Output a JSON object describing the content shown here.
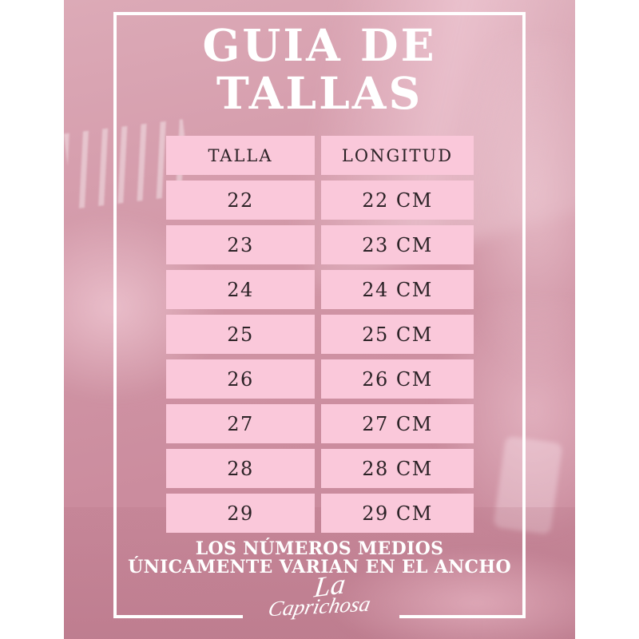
{
  "title": {
    "line1": "GUIA DE",
    "line2": "TALLAS"
  },
  "table": {
    "headers": [
      "TALLA",
      "LONGITUD"
    ],
    "rows": [
      [
        "22",
        "22 CM"
      ],
      [
        "23",
        "23 CM"
      ],
      [
        "24",
        "24 CM"
      ],
      [
        "25",
        "25 CM"
      ],
      [
        "26",
        "26 CM"
      ],
      [
        "27",
        "27 CM"
      ],
      [
        "28",
        "28 CM"
      ],
      [
        "29",
        "29 CM"
      ]
    ]
  },
  "note": {
    "line1": "LOS NÚMEROS MEDIOS",
    "line2": "ÚNICAMENTE VARIAN EN EL ANCHO"
  },
  "signature": {
    "line1": "La",
    "line2": "Caprichosa"
  },
  "colors": {
    "background_rose": "#cf93a3",
    "cell_pink": "#fac8da",
    "text_dark": "#2b2226",
    "frame_white": "#ffffff"
  }
}
